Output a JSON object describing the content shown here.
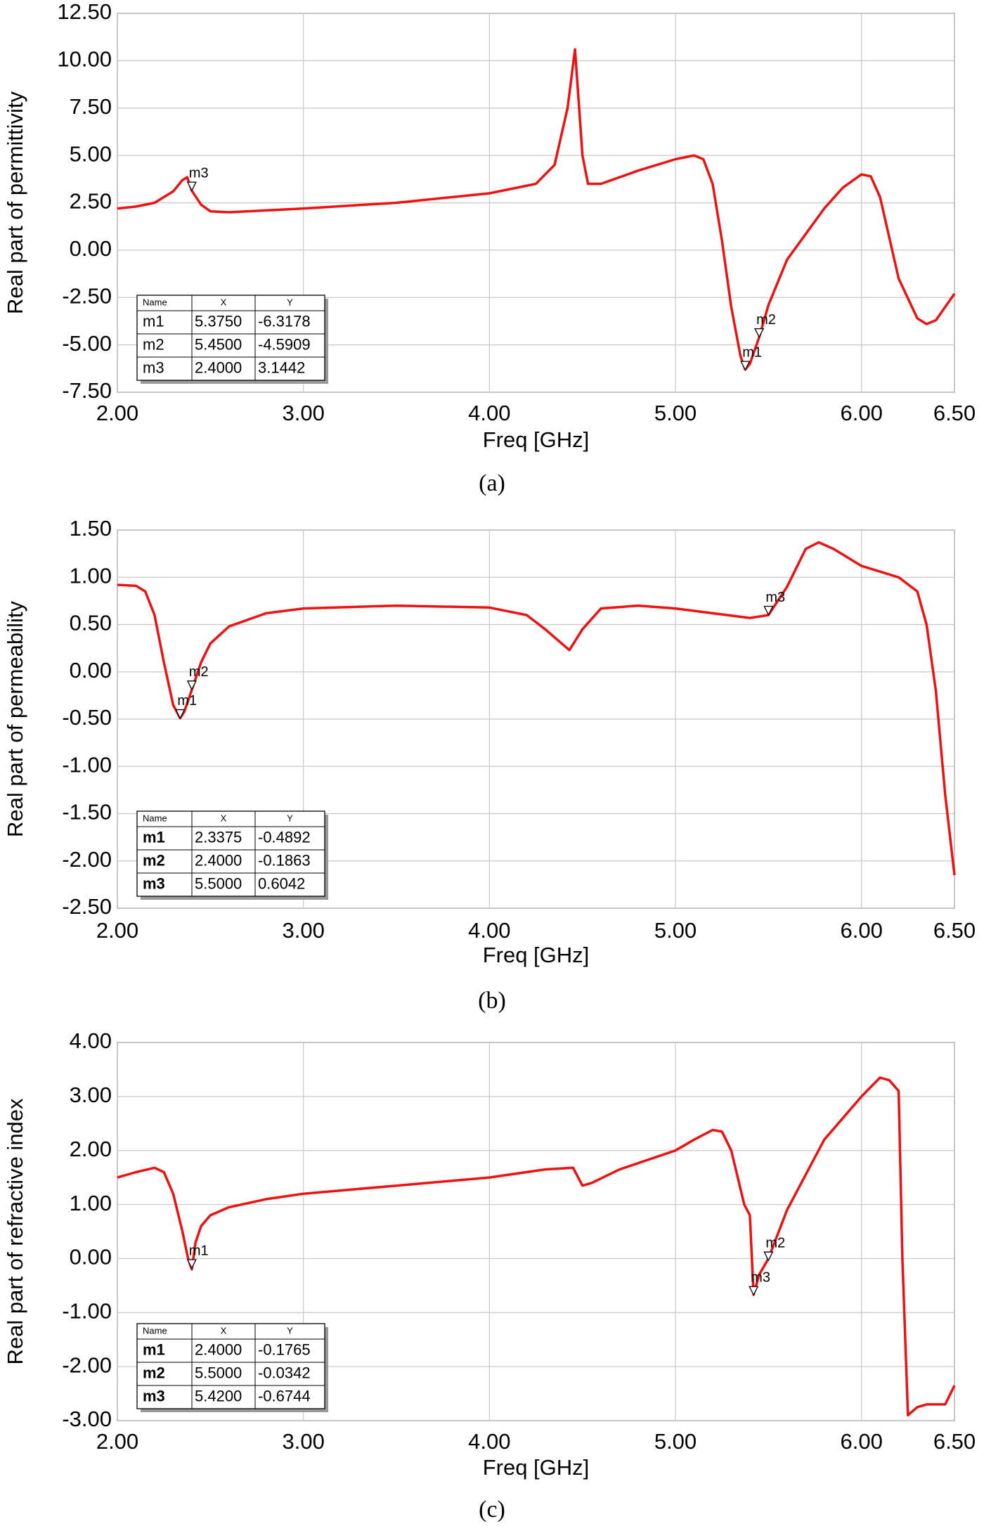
{
  "chart_data": [
    {
      "type": "line",
      "xlabel": "Freq [GHz]",
      "ylabel": "Real part of permittivity",
      "caption": "(a)",
      "x": [
        2.0,
        2.1,
        2.2,
        2.3,
        2.35,
        2.375,
        2.4,
        2.45,
        2.5,
        2.6,
        3.0,
        3.5,
        4.0,
        4.25,
        4.35,
        4.42,
        4.46,
        4.5,
        4.53,
        4.6,
        4.8,
        5.0,
        5.1,
        5.15,
        5.2,
        5.25,
        5.3,
        5.35,
        5.375,
        5.4,
        5.45,
        5.5,
        5.6,
        5.8,
        5.9,
        6.0,
        6.05,
        6.1,
        6.2,
        6.3,
        6.35,
        6.4,
        6.5
      ],
      "series": [
        {
          "color": "#ee1111",
          "values": [
            2.2,
            2.3,
            2.5,
            3.1,
            3.7,
            3.85,
            3.14,
            2.4,
            2.05,
            2.0,
            2.2,
            2.5,
            3.0,
            3.5,
            4.5,
            7.5,
            10.6,
            5.0,
            3.5,
            3.5,
            4.2,
            4.8,
            5.0,
            4.8,
            3.5,
            0.5,
            -3.0,
            -5.6,
            -6.3,
            -6.0,
            -4.6,
            -2.9,
            -0.5,
            2.2,
            3.3,
            4.0,
            3.9,
            2.8,
            -1.5,
            -3.6,
            -3.9,
            -3.7,
            -2.3
          ]
        }
      ],
      "xlim": [
        2,
        6.5
      ],
      "xticks": [
        {
          "value": 2,
          "label": "2.00"
        },
        {
          "value": 3,
          "label": "3.00"
        },
        {
          "value": 4,
          "label": "4.00"
        },
        {
          "value": 5,
          "label": "5.00"
        },
        {
          "value": 6,
          "label": "6.00"
        },
        {
          "value": 6.5,
          "label": "6.50"
        }
      ],
      "ylim": [
        -7.5,
        12.5
      ],
      "yticks": [
        {
          "value": -7.5,
          "label": "-7.50"
        },
        {
          "value": -5,
          "label": "-5.00"
        },
        {
          "value": -2.5,
          "label": "-2.50"
        },
        {
          "value": 0,
          "label": "0.00"
        },
        {
          "value": 2.5,
          "label": "2.50"
        },
        {
          "value": 5,
          "label": "5.00"
        },
        {
          "value": 7.5,
          "label": "7.50"
        },
        {
          "value": 10,
          "label": "10.00"
        },
        {
          "value": 12.5,
          "label": "12.50"
        }
      ],
      "grid": true,
      "markers": {
        "header": [
          "Name",
          "X",
          "Y"
        ],
        "names": [
          "m1",
          "m2",
          "m3"
        ],
        "x": [
          5.375,
          5.45,
          2.4
        ],
        "x_labels": [
          "5.3750",
          "5.4500",
          "2.4000"
        ],
        "y": [
          -6.3178,
          -4.5909,
          3.1442
        ],
        "y_labels": [
          "-6.3178",
          "-4.5909",
          "3.1442"
        ]
      }
    },
    {
      "type": "line",
      "xlabel": "Freq [GHz]",
      "ylabel": "Real part of permeability",
      "caption": "(b)",
      "x": [
        2.0,
        2.1,
        2.15,
        2.2,
        2.25,
        2.3,
        2.3375,
        2.36,
        2.4,
        2.45,
        2.5,
        2.6,
        2.8,
        3.0,
        3.5,
        4.0,
        4.2,
        4.3,
        4.43,
        4.5,
        4.6,
        4.8,
        5.0,
        5.2,
        5.4,
        5.5,
        5.6,
        5.7,
        5.77,
        5.85,
        6.0,
        6.2,
        6.3,
        6.35,
        6.4,
        6.45,
        6.5
      ],
      "series": [
        {
          "color": "#ee1111",
          "values": [
            0.92,
            0.91,
            0.85,
            0.6,
            0.1,
            -0.35,
            -0.49,
            -0.42,
            -0.19,
            0.1,
            0.3,
            0.48,
            0.62,
            0.67,
            0.7,
            0.68,
            0.6,
            0.45,
            0.23,
            0.45,
            0.67,
            0.7,
            0.67,
            0.62,
            0.57,
            0.6,
            0.9,
            1.3,
            1.37,
            1.3,
            1.12,
            1.0,
            0.85,
            0.5,
            -0.2,
            -1.3,
            -2.15
          ]
        }
      ],
      "xlim": [
        2,
        6.5
      ],
      "xticks": [
        {
          "value": 2,
          "label": "2.00"
        },
        {
          "value": 3,
          "label": "3.00"
        },
        {
          "value": 4,
          "label": "4.00"
        },
        {
          "value": 5,
          "label": "5.00"
        },
        {
          "value": 6,
          "label": "6.00"
        },
        {
          "value": 6.5,
          "label": "6.50"
        }
      ],
      "ylim": [
        -2.5,
        1.5
      ],
      "yticks": [
        {
          "value": -2.5,
          "label": "-2.50"
        },
        {
          "value": -2,
          "label": "-2.00"
        },
        {
          "value": -1.5,
          "label": "-1.50"
        },
        {
          "value": -1,
          "label": "-1.00"
        },
        {
          "value": -0.5,
          "label": "-0.50"
        },
        {
          "value": 0,
          "label": "0.00"
        },
        {
          "value": 0.5,
          "label": "0.50"
        },
        {
          "value": 1,
          "label": "1.00"
        },
        {
          "value": 1.5,
          "label": "1.50"
        }
      ],
      "grid": true,
      "markers": {
        "header": [
          "Name",
          "X",
          "Y"
        ],
        "names": [
          "m1",
          "m2",
          "m3"
        ],
        "x": [
          2.3375,
          2.4,
          5.5
        ],
        "x_labels": [
          "2.3375",
          "2.4000",
          "5.5000"
        ],
        "y": [
          -0.4892,
          -0.1863,
          0.6042
        ],
        "y_labels": [
          "-0.4892",
          "-0.1863",
          "0.6042"
        ]
      }
    },
    {
      "type": "line",
      "xlabel": "Freq [GHz]",
      "ylabel": "Real part of refractive index",
      "caption": "(c)",
      "x": [
        2.0,
        2.1,
        2.2,
        2.25,
        2.3,
        2.35,
        2.38,
        2.4,
        2.42,
        2.45,
        2.5,
        2.6,
        2.8,
        3.0,
        3.5,
        4.0,
        4.3,
        4.45,
        4.5,
        4.55,
        4.7,
        5.0,
        5.1,
        5.2,
        5.25,
        5.3,
        5.37,
        5.4,
        5.42,
        5.45,
        5.5,
        5.6,
        5.8,
        6.0,
        6.1,
        6.15,
        6.2,
        6.22,
        6.25,
        6.3,
        6.35,
        6.45,
        6.5
      ],
      "series": [
        {
          "color": "#ee1111",
          "values": [
            1.5,
            1.6,
            1.68,
            1.6,
            1.2,
            0.5,
            0.0,
            -0.2,
            0.3,
            0.6,
            0.8,
            0.95,
            1.1,
            1.2,
            1.35,
            1.5,
            1.65,
            1.68,
            1.35,
            1.4,
            1.65,
            2.0,
            2.2,
            2.38,
            2.35,
            2.0,
            1.0,
            0.8,
            -0.67,
            -0.3,
            0.0,
            0.9,
            2.2,
            3.0,
            3.35,
            3.3,
            3.1,
            0.0,
            -2.9,
            -2.75,
            -2.7,
            -2.7,
            -2.35
          ]
        }
      ],
      "xlim": [
        2,
        6.5
      ],
      "xticks": [
        {
          "value": 2,
          "label": "2.00"
        },
        {
          "value": 3,
          "label": "3.00"
        },
        {
          "value": 4,
          "label": "4.00"
        },
        {
          "value": 5,
          "label": "5.00"
        },
        {
          "value": 6,
          "label": "6.00"
        },
        {
          "value": 6.5,
          "label": "6.50"
        }
      ],
      "ylim": [
        -3,
        4
      ],
      "yticks": [
        {
          "value": -3,
          "label": "-3.00"
        },
        {
          "value": -2,
          "label": "-2.00"
        },
        {
          "value": -1,
          "label": "-1.00"
        },
        {
          "value": 0,
          "label": "0.00"
        },
        {
          "value": 1,
          "label": "1.00"
        },
        {
          "value": 2,
          "label": "2.00"
        },
        {
          "value": 3,
          "label": "3.00"
        },
        {
          "value": 4,
          "label": "4.00"
        }
      ],
      "grid": true,
      "markers": {
        "header": [
          "Name",
          "X",
          "Y"
        ],
        "names": [
          "m1",
          "m2",
          "m3"
        ],
        "x": [
          2.4,
          5.5,
          5.42
        ],
        "x_labels": [
          "2.4000",
          "5.5000",
          "5.4200"
        ],
        "y": [
          -0.1765,
          -0.0342,
          -0.6744
        ],
        "y_labels": [
          "-0.1765",
          "-0.0342",
          "-0.6744"
        ]
      }
    }
  ]
}
